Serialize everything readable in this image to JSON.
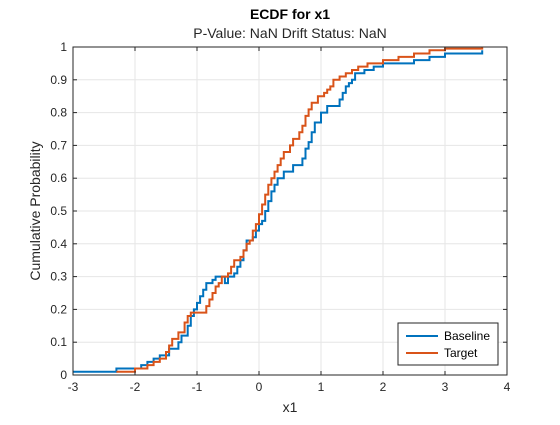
{
  "chart_data": {
    "type": "line",
    "step": true,
    "title": "ECDF for x1",
    "subtitle": "P-Value: NaN Drift Status: NaN",
    "xlabel": "x1",
    "ylabel": "Cumulative Probability",
    "xlim": [
      -3,
      4
    ],
    "ylim": [
      0,
      1
    ],
    "xticks": [
      -3,
      -2,
      -1,
      0,
      1,
      2,
      3,
      4
    ],
    "xtick_labels": [
      "-3",
      "-2",
      "-1",
      "0",
      "1",
      "2",
      "3",
      "4"
    ],
    "yticks": [
      0,
      0.1,
      0.2,
      0.3,
      0.4,
      0.5,
      0.6,
      0.7,
      0.8,
      0.9,
      1
    ],
    "ytick_labels": [
      "0",
      "0.1",
      "0.2",
      "0.3",
      "0.4",
      "0.5",
      "0.6",
      "0.7",
      "0.8",
      "0.9",
      "1"
    ],
    "grid": true,
    "legend_position": "bottom-right",
    "series": [
      {
        "name": "Baseline",
        "color": "#0072BD",
        "points": [
          [
            -3,
            0.01
          ],
          [
            -2.3,
            0.02
          ],
          [
            -1.9,
            0.03
          ],
          [
            -1.8,
            0.04
          ],
          [
            -1.7,
            0.05
          ],
          [
            -1.6,
            0.06
          ],
          [
            -1.45,
            0.08
          ],
          [
            -1.3,
            0.1
          ],
          [
            -1.25,
            0.12
          ],
          [
            -1.15,
            0.15
          ],
          [
            -1.1,
            0.18
          ],
          [
            -1.05,
            0.2
          ],
          [
            -1.0,
            0.22
          ],
          [
            -0.95,
            0.24
          ],
          [
            -0.9,
            0.26
          ],
          [
            -0.85,
            0.28
          ],
          [
            -0.75,
            0.29
          ],
          [
            -0.7,
            0.3
          ],
          [
            -0.55,
            0.28
          ],
          [
            -0.5,
            0.3
          ],
          [
            -0.4,
            0.31
          ],
          [
            -0.35,
            0.33
          ],
          [
            -0.3,
            0.35
          ],
          [
            -0.25,
            0.38
          ],
          [
            -0.2,
            0.41
          ],
          [
            -0.1,
            0.42
          ],
          [
            -0.05,
            0.44
          ],
          [
            0.0,
            0.46
          ],
          [
            0.05,
            0.47
          ],
          [
            0.1,
            0.5
          ],
          [
            0.15,
            0.53
          ],
          [
            0.2,
            0.56
          ],
          [
            0.25,
            0.58
          ],
          [
            0.3,
            0.6
          ],
          [
            0.4,
            0.62
          ],
          [
            0.55,
            0.64
          ],
          [
            0.7,
            0.66
          ],
          [
            0.75,
            0.69
          ],
          [
            0.8,
            0.71
          ],
          [
            0.85,
            0.74
          ],
          [
            0.9,
            0.77
          ],
          [
            1.0,
            0.8
          ],
          [
            1.1,
            0.82
          ],
          [
            1.3,
            0.84
          ],
          [
            1.35,
            0.86
          ],
          [
            1.4,
            0.88
          ],
          [
            1.45,
            0.89
          ],
          [
            1.5,
            0.9
          ],
          [
            1.55,
            0.92
          ],
          [
            1.7,
            0.93
          ],
          [
            1.85,
            0.94
          ],
          [
            2.0,
            0.95
          ],
          [
            2.5,
            0.96
          ],
          [
            2.75,
            0.97
          ],
          [
            3.0,
            0.98
          ],
          [
            3.6,
            0.99
          ]
        ]
      },
      {
        "name": "Target",
        "color": "#D95319",
        "points": [
          [
            -2.3,
            0.01
          ],
          [
            -2.0,
            0.02
          ],
          [
            -1.8,
            0.03
          ],
          [
            -1.7,
            0.04
          ],
          [
            -1.6,
            0.05
          ],
          [
            -1.5,
            0.07
          ],
          [
            -1.45,
            0.09
          ],
          [
            -1.4,
            0.11
          ],
          [
            -1.3,
            0.13
          ],
          [
            -1.2,
            0.16
          ],
          [
            -1.15,
            0.18
          ],
          [
            -1.1,
            0.19
          ],
          [
            -0.85,
            0.21
          ],
          [
            -0.8,
            0.23
          ],
          [
            -0.75,
            0.25
          ],
          [
            -0.7,
            0.27
          ],
          [
            -0.65,
            0.28
          ],
          [
            -0.6,
            0.3
          ],
          [
            -0.5,
            0.31
          ],
          [
            -0.45,
            0.33
          ],
          [
            -0.4,
            0.35
          ],
          [
            -0.3,
            0.36
          ],
          [
            -0.25,
            0.38
          ],
          [
            -0.2,
            0.4
          ],
          [
            -0.15,
            0.41
          ],
          [
            -0.1,
            0.44
          ],
          [
            -0.05,
            0.46
          ],
          [
            0.0,
            0.49
          ],
          [
            0.05,
            0.52
          ],
          [
            0.1,
            0.55
          ],
          [
            0.15,
            0.58
          ],
          [
            0.2,
            0.6
          ],
          [
            0.25,
            0.62
          ],
          [
            0.3,
            0.64
          ],
          [
            0.35,
            0.66
          ],
          [
            0.4,
            0.68
          ],
          [
            0.5,
            0.7
          ],
          [
            0.55,
            0.72
          ],
          [
            0.65,
            0.74
          ],
          [
            0.7,
            0.76
          ],
          [
            0.75,
            0.79
          ],
          [
            0.8,
            0.81
          ],
          [
            0.85,
            0.83
          ],
          [
            0.95,
            0.85
          ],
          [
            1.05,
            0.86
          ],
          [
            1.1,
            0.87
          ],
          [
            1.15,
            0.88
          ],
          [
            1.2,
            0.9
          ],
          [
            1.3,
            0.91
          ],
          [
            1.4,
            0.92
          ],
          [
            1.5,
            0.93
          ],
          [
            1.6,
            0.94
          ],
          [
            1.75,
            0.95
          ],
          [
            2.0,
            0.96
          ],
          [
            2.25,
            0.97
          ],
          [
            2.5,
            0.98
          ],
          [
            2.75,
            0.99
          ],
          [
            3.0,
            0.995
          ],
          [
            3.6,
            1.0
          ]
        ]
      }
    ]
  }
}
